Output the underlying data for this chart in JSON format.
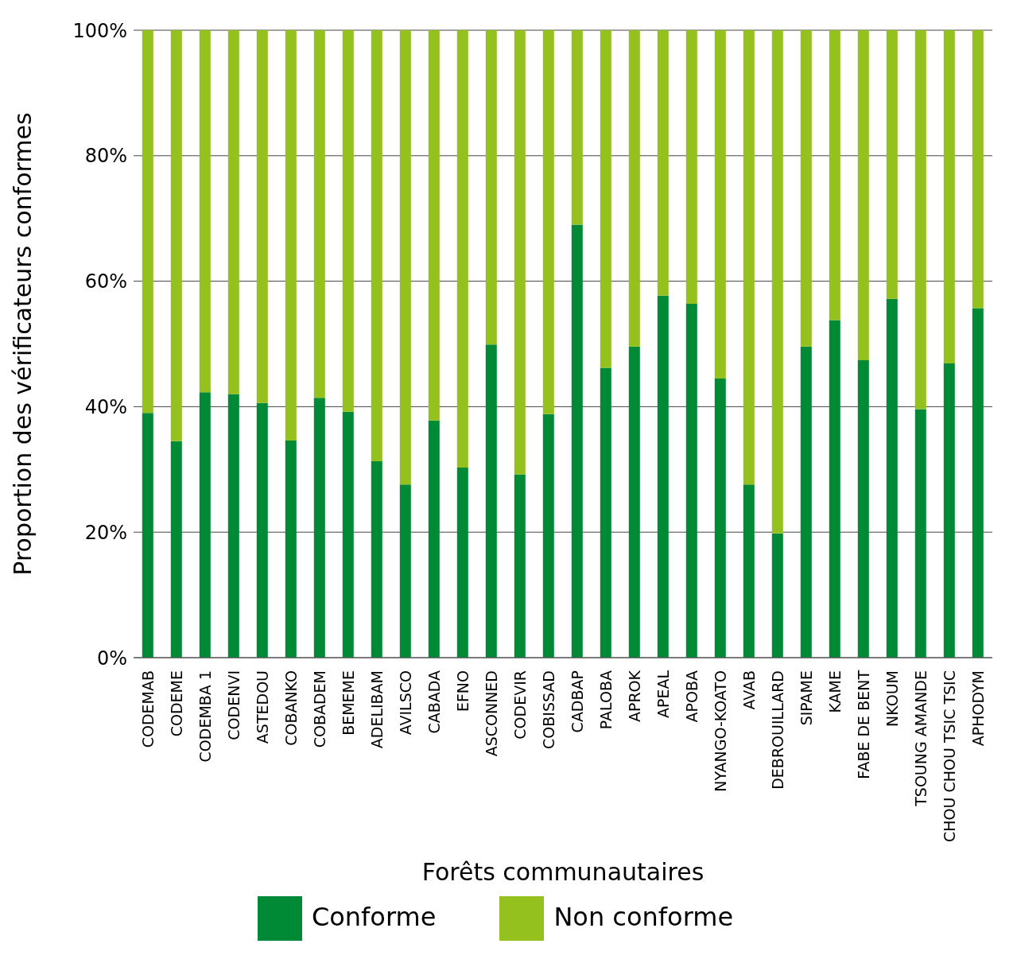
{
  "chart_data": {
    "type": "bar",
    "stacked": true,
    "xlabel": "Forêts communautaires",
    "ylabel": "Proportion des vérificateurs conformes",
    "categories": [
      "CODEMAB",
      "CODEME",
      "CODEMBA 1",
      "CODENVI",
      "ASTEDOU",
      "COBANKO",
      "COBADEM",
      "BEMEME",
      "ADELIBAM",
      "AVILSCO",
      "CABADA",
      "EFNO",
      "ASCONNED",
      "CODEVIR",
      "COBISSAD",
      "CADBAP",
      "PALOBA",
      "APROK",
      "APEAL",
      "APOBA",
      "NYANGO-KOATO",
      "AVAB",
      "DEBROUILLARD",
      "SIPAME",
      "KAME",
      "FABE DE BENT",
      "NKOUM",
      "TSOUNG AMANDE",
      "CHOU CHOU TSIC TSIC",
      "APHODYM"
    ],
    "series": [
      {
        "name": "Conforme",
        "color": "#008a36",
        "values": [
          39,
          34.5,
          42.3,
          42,
          40.6,
          34.6,
          41.4,
          39.2,
          31.3,
          27.6,
          37.8,
          30.3,
          49.9,
          29.2,
          38.8,
          69,
          46.2,
          49.6,
          57.7,
          56.4,
          44.5,
          27.6,
          19.8,
          49.6,
          53.8,
          47.4,
          57.2,
          39.6,
          46.9,
          55.7
        ]
      },
      {
        "name": "Non conforme",
        "color": "#95c11f",
        "values": [
          61,
          65.5,
          57.7,
          58,
          59.4,
          65.4,
          58.6,
          60.8,
          68.7,
          72.4,
          62.2,
          69.7,
          50.1,
          70.8,
          61.2,
          31,
          53.8,
          50.4,
          42.3,
          43.6,
          55.5,
          72.4,
          80.2,
          50.4,
          46.2,
          52.6,
          42.8,
          60.4,
          53.1,
          44.3
        ]
      }
    ],
    "ylim": [
      0,
      100
    ],
    "yticks": [
      {
        "value": 0,
        "label": "0%"
      },
      {
        "value": 20,
        "label": "20%"
      },
      {
        "value": 40,
        "label": "40%"
      },
      {
        "value": 60,
        "label": "60%"
      },
      {
        "value": 80,
        "label": "80%"
      },
      {
        "value": 100,
        "label": "100%"
      }
    ],
    "grid": "y",
    "legend": "bottom"
  }
}
